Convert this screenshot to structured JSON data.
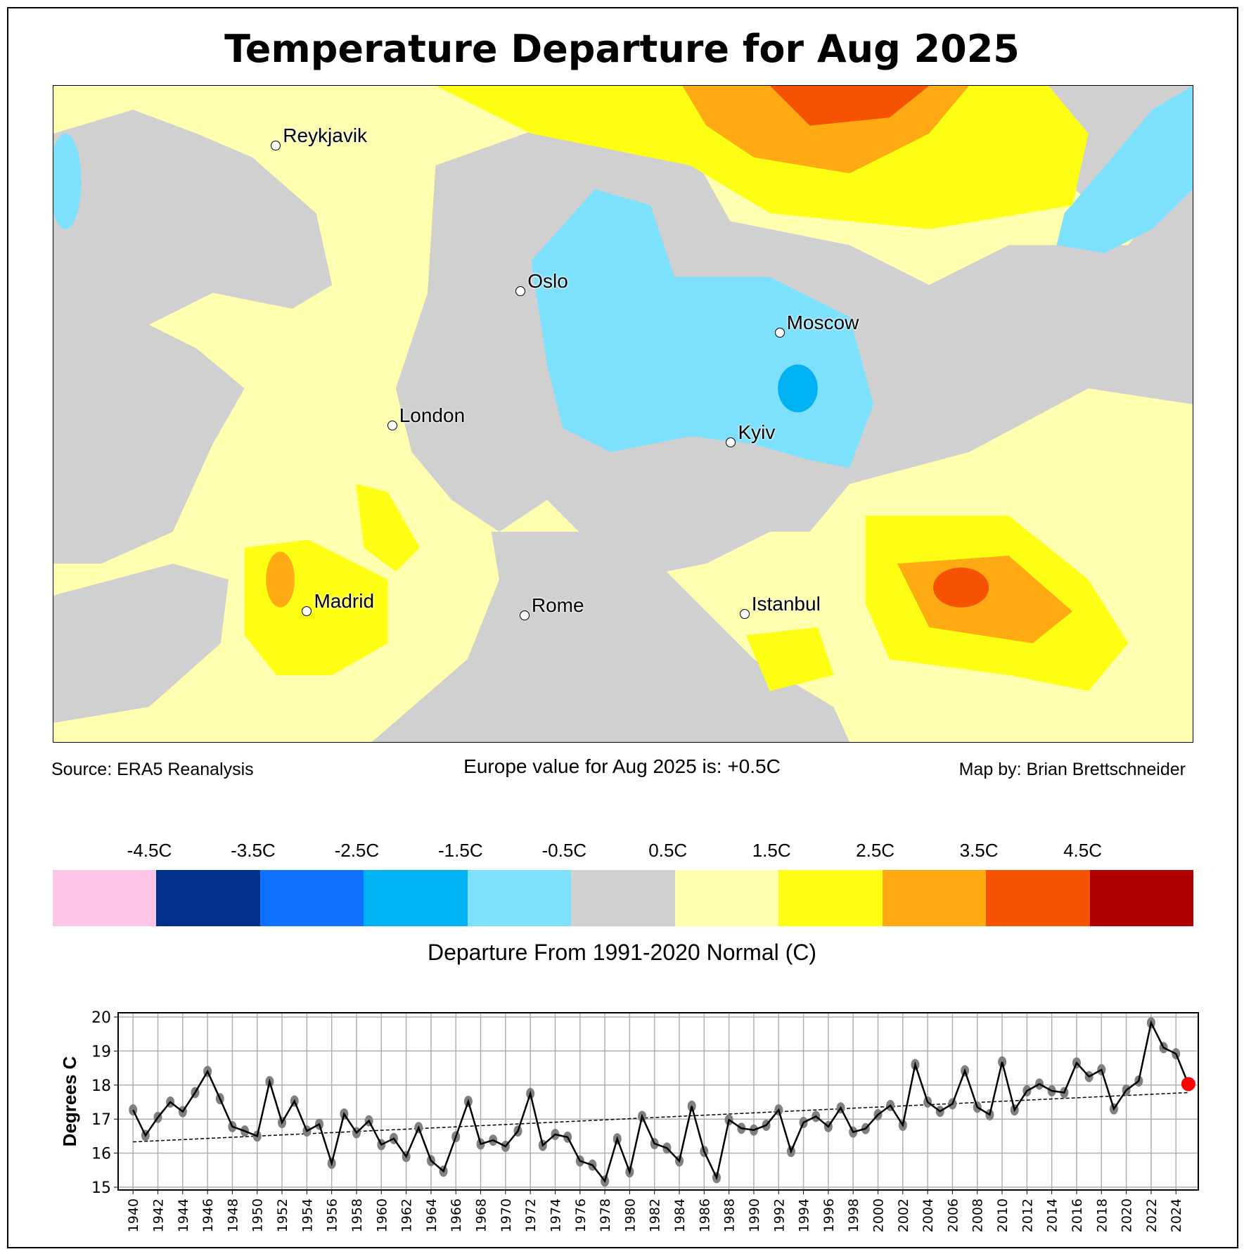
{
  "title": "Temperature Departure for Aug 2025",
  "source": "Source: ERA5 Reanalysis",
  "summary": "Europe value for Aug 2025 is: +0.5C",
  "credit": "Map by: Brian Brettschneider",
  "cities": [
    {
      "name": "Reykjavik"
    },
    {
      "name": "Oslo"
    },
    {
      "name": "Moscow"
    },
    {
      "name": "London"
    },
    {
      "name": "Kyiv"
    },
    {
      "name": "Madrid"
    },
    {
      "name": "Rome"
    },
    {
      "name": "Istanbul"
    }
  ],
  "colorbar": {
    "title": "Departure From 1991-2020 Normal (C)",
    "labels": [
      "-4.5C",
      "-3.5C",
      "-2.5C",
      "-1.5C",
      "-0.5C",
      "0.5C",
      "1.5C",
      "2.5C",
      "3.5C",
      "4.5C"
    ],
    "colors": [
      "#fcc5e8",
      "#00308a",
      "#1070ff",
      "#00b2f2",
      "#7de0fc",
      "#d0d0d0",
      "#ffffb0",
      "#ffff14",
      "#ffaa12",
      "#f55302",
      "#b00000"
    ]
  },
  "chart_data": {
    "type": "line",
    "title": "",
    "xlabel": "",
    "ylabel": "Degrees C",
    "ylim": [
      15,
      20
    ],
    "yticks": [
      15,
      16,
      17,
      18,
      19,
      20
    ],
    "grid": true,
    "x": [
      1940,
      1941,
      1942,
      1943,
      1944,
      1945,
      1946,
      1947,
      1948,
      1949,
      1950,
      1951,
      1952,
      1953,
      1954,
      1955,
      1956,
      1957,
      1958,
      1959,
      1960,
      1961,
      1962,
      1963,
      1964,
      1965,
      1966,
      1967,
      1968,
      1969,
      1970,
      1971,
      1972,
      1973,
      1974,
      1975,
      1976,
      1977,
      1978,
      1979,
      1980,
      1981,
      1982,
      1983,
      1984,
      1985,
      1986,
      1987,
      1988,
      1989,
      1990,
      1991,
      1992,
      1993,
      1994,
      1995,
      1996,
      1997,
      1998,
      1999,
      2000,
      2001,
      2002,
      2003,
      2004,
      2005,
      2006,
      2007,
      2008,
      2009,
      2010,
      2011,
      2012,
      2013,
      2014,
      2015,
      2016,
      2017,
      2018,
      2019,
      2020,
      2021,
      2022,
      2023,
      2024,
      2025
    ],
    "values": [
      17.27,
      16.52,
      17.05,
      17.5,
      17.22,
      17.78,
      18.4,
      17.6,
      16.78,
      16.65,
      16.5,
      18.1,
      16.9,
      17.53,
      16.65,
      16.85,
      15.7,
      17.15,
      16.6,
      16.95,
      16.25,
      16.43,
      15.9,
      16.75,
      15.78,
      15.47,
      16.48,
      17.52,
      16.27,
      16.38,
      16.2,
      16.65,
      17.75,
      16.23,
      16.55,
      16.47,
      15.77,
      15.65,
      15.18,
      16.42,
      15.45,
      17.08,
      16.28,
      16.15,
      15.77,
      17.38,
      16.05,
      15.28,
      16.98,
      16.73,
      16.68,
      16.82,
      17.27,
      16.05,
      16.9,
      17.08,
      16.78,
      17.33,
      16.62,
      16.72,
      17.13,
      17.4,
      16.82,
      18.6,
      17.5,
      17.23,
      17.45,
      18.42,
      17.35,
      17.13,
      18.68,
      17.27,
      17.83,
      18.03,
      17.83,
      17.78,
      18.65,
      18.25,
      18.45,
      17.3,
      17.85,
      18.12,
      19.83,
      19.1,
      18.92,
      18.03
    ],
    "trend": {
      "start": 16.33,
      "end": 17.78
    },
    "highlight_year": 2025,
    "colors": {
      "line": "#000000",
      "marker": "#808080",
      "highlight": "#ff0000"
    }
  }
}
